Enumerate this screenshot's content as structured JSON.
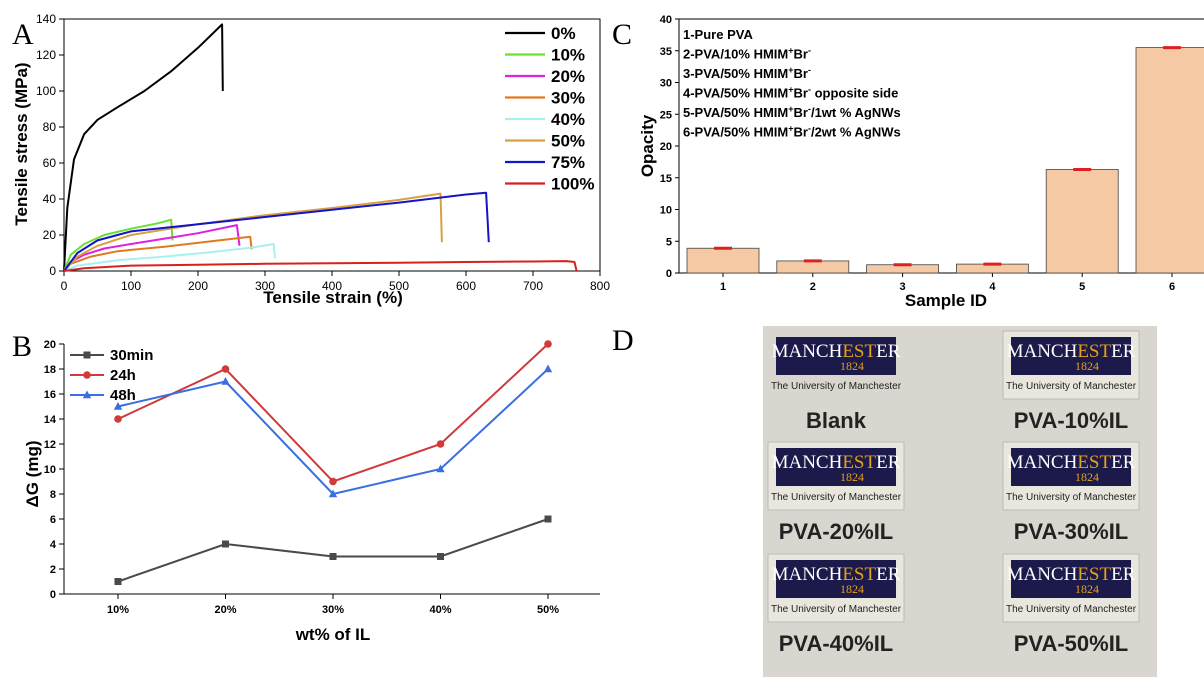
{
  "colors": {
    "bar_fill": "#f4c9a4",
    "bar_stroke": "#444444",
    "error_bar": "#e02020",
    "photo_bg": "#d9d6cf",
    "logo_bg": "#1b1a4a",
    "logo_accent": "#e3a11b"
  },
  "panels": {
    "a": "A",
    "b": "B",
    "c": "C",
    "d": "D"
  },
  "chart_data": [
    {
      "id": "A",
      "type": "line",
      "xlabel": "Tensile strain (%)",
      "ylabel": "Tensile stress (MPa)",
      "xlim": [
        0,
        800
      ],
      "ylim": [
        0,
        140
      ],
      "xticks": [
        0,
        100,
        200,
        300,
        400,
        500,
        600,
        700,
        800
      ],
      "yticks": [
        0,
        20,
        40,
        60,
        80,
        100,
        120,
        140
      ],
      "legend_position": "top-right",
      "series": [
        {
          "name": "0%",
          "color": "#000000",
          "points": [
            [
              0,
              0
            ],
            [
              5,
              35
            ],
            [
              15,
              62
            ],
            [
              30,
              76
            ],
            [
              50,
              84
            ],
            [
              80,
              91
            ],
            [
              120,
              100
            ],
            [
              160,
              111
            ],
            [
              200,
              124
            ],
            [
              236,
              137
            ],
            [
              237,
              100
            ]
          ]
        },
        {
          "name": "10%",
          "color": "#66e22c",
          "points": [
            [
              0,
              0
            ],
            [
              10,
              9
            ],
            [
              30,
              15
            ],
            [
              60,
              20
            ],
            [
              100,
              23.5
            ],
            [
              140,
              26.5
            ],
            [
              160,
              28.5
            ],
            [
              162,
              17
            ]
          ]
        },
        {
          "name": "20%",
          "color": "#e020e0",
          "points": [
            [
              0,
              0
            ],
            [
              10,
              5
            ],
            [
              30,
              9
            ],
            [
              60,
              12.5
            ],
            [
              100,
              15
            ],
            [
              150,
              18
            ],
            [
              200,
              21
            ],
            [
              258,
              25.5
            ],
            [
              262,
              14
            ]
          ]
        },
        {
          "name": "30%",
          "color": "#e07a20",
          "points": [
            [
              0,
              0
            ],
            [
              10,
              4
            ],
            [
              40,
              8
            ],
            [
              80,
              11
            ],
            [
              150,
              13.5
            ],
            [
              220,
              16.5
            ],
            [
              278,
              19
            ],
            [
              280,
              12
            ]
          ]
        },
        {
          "name": "40%",
          "color": "#a8f0f0",
          "points": [
            [
              0,
              0
            ],
            [
              20,
              3
            ],
            [
              80,
              6
            ],
            [
              150,
              8
            ],
            [
              220,
              10.5
            ],
            [
              280,
              13
            ],
            [
              313,
              15
            ],
            [
              315,
              7
            ]
          ]
        },
        {
          "name": "50%",
          "color": "#d8a040",
          "points": [
            [
              0,
              0
            ],
            [
              20,
              8
            ],
            [
              50,
              14
            ],
            [
              100,
              20
            ],
            [
              200,
              26
            ],
            [
              300,
              31
            ],
            [
              400,
              35
            ],
            [
              500,
              39.5
            ],
            [
              562,
              43
            ],
            [
              564,
              16
            ]
          ]
        },
        {
          "name": "75%",
          "color": "#1414c8",
          "points": [
            [
              0,
              0
            ],
            [
              20,
              10
            ],
            [
              50,
              17
            ],
            [
              100,
              22
            ],
            [
              200,
              26
            ],
            [
              300,
              30
            ],
            [
              400,
              34
            ],
            [
              500,
              38
            ],
            [
              600,
              42.5
            ],
            [
              630,
              43.5
            ],
            [
              634,
              16
            ]
          ]
        },
        {
          "name": "100%",
          "color": "#d82020",
          "points": [
            [
              0,
              0
            ],
            [
              30,
              1.5
            ],
            [
              100,
              3
            ],
            [
              200,
              3.5
            ],
            [
              300,
              4
            ],
            [
              400,
              4.3
            ],
            [
              500,
              4.6
            ],
            [
              600,
              5
            ],
            [
              700,
              5.3
            ],
            [
              750,
              5.5
            ],
            [
              762,
              5
            ],
            [
              765,
              0
            ]
          ]
        }
      ]
    },
    {
      "id": "B",
      "type": "line",
      "xlabel": "wt% of IL",
      "ylabel": "ΔG (mg)",
      "ylim": [
        0,
        20
      ],
      "categories": [
        "10%",
        "20%",
        "30%",
        "40%",
        "50%"
      ],
      "yticks": [
        0,
        2,
        4,
        6,
        8,
        10,
        12,
        14,
        16,
        18,
        20
      ],
      "legend_position": "top-left",
      "series": [
        {
          "name": "30min",
          "color": "#4a4a4a",
          "marker": "square",
          "values": [
            1,
            4,
            3,
            3,
            6
          ]
        },
        {
          "name": "24h",
          "color": "#d03a3a",
          "marker": "circle",
          "values": [
            14,
            18,
            9,
            12,
            20
          ]
        },
        {
          "name": "48h",
          "color": "#3a6fe0",
          "marker": "triangle",
          "values": [
            15,
            17,
            8,
            10,
            18
          ]
        }
      ]
    },
    {
      "id": "C",
      "type": "bar",
      "xlabel": "Sample ID",
      "ylabel": "Opacity",
      "ylim": [
        0,
        40
      ],
      "categories": [
        "1",
        "2",
        "3",
        "4",
        "5",
        "6"
      ],
      "yticks": [
        0,
        5,
        10,
        15,
        20,
        25,
        30,
        35,
        40
      ],
      "values": [
        3.9,
        1.9,
        1.3,
        1.4,
        16.3,
        35.5
      ],
      "notes": [
        "1-Pure PVA",
        "2-PVA/10% HMIM+Br-",
        "3-PVA/50% HMIM+Br-",
        "4-PVA/50% HMIM+Br- opposite side",
        "5-PVA/50% HMIM+Br-/1wt % AgNWs",
        "6-PVA/50% HMIM+Br-/2wt % AgNWs"
      ]
    }
  ],
  "photo": {
    "logo_word_left": "MANCH",
    "logo_word_mid": "EST",
    "logo_word_right": "ER",
    "logo_year": "1824",
    "logo_university": "The University of Manchester",
    "samples": [
      "Blank",
      "PVA-10%IL",
      "PVA-20%IL",
      "PVA-30%IL",
      "PVA-40%IL",
      "PVA-50%IL"
    ]
  }
}
